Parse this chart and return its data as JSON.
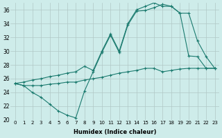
{
  "xlabel": "Humidex (Indice chaleur)",
  "ylabel": "",
  "background_color": "#ceecea",
  "grid_color": "#b0c8c6",
  "line_color": "#1a7a6e",
  "xlim": [
    -0.5,
    23.5
  ],
  "ylim": [
    20,
    37
  ],
  "xticks": [
    0,
    1,
    2,
    3,
    4,
    5,
    6,
    7,
    8,
    9,
    10,
    11,
    12,
    13,
    14,
    15,
    16,
    17,
    18,
    19,
    20,
    21,
    22,
    23
  ],
  "yticks": [
    20,
    22,
    24,
    26,
    28,
    30,
    32,
    34,
    36
  ],
  "line1_x": [
    0,
    1,
    2,
    3,
    4,
    5,
    6,
    7,
    8,
    9,
    10,
    11,
    12,
    13,
    14,
    15,
    16,
    17,
    18,
    19,
    20,
    21,
    22,
    23
  ],
  "line1_y": [
    25.3,
    25.0,
    25.0,
    25.0,
    25.2,
    25.3,
    25.5,
    25.5,
    25.8,
    26.0,
    26.2,
    26.5,
    26.8,
    27.0,
    27.2,
    27.5,
    27.5,
    27.0,
    27.2,
    27.4,
    27.5,
    27.5,
    27.5,
    27.5
  ],
  "line2_x": [
    0,
    1,
    2,
    3,
    4,
    5,
    6,
    7,
    8,
    9,
    10,
    11,
    12,
    13,
    14,
    15,
    16,
    17,
    18,
    19,
    20,
    21,
    22,
    23
  ],
  "line2_y": [
    25.3,
    25.0,
    24.0,
    23.3,
    22.3,
    21.3,
    20.7,
    20.3,
    24.2,
    27.0,
    29.8,
    32.3,
    29.8,
    33.8,
    35.8,
    35.9,
    36.3,
    36.8,
    36.5,
    35.5,
    29.3,
    29.2,
    27.5,
    27.5
  ],
  "line3_x": [
    0,
    1,
    2,
    3,
    4,
    5,
    6,
    7,
    8,
    9,
    10,
    11,
    12,
    13,
    14,
    15,
    16,
    17,
    18,
    19,
    20,
    21,
    22,
    23
  ],
  "line3_y": [
    25.3,
    25.5,
    25.8,
    26.0,
    26.3,
    26.5,
    26.8,
    27.0,
    27.8,
    27.2,
    30.0,
    32.5,
    30.0,
    34.0,
    36.0,
    36.5,
    37.0,
    36.5,
    36.5,
    35.5,
    35.5,
    31.5,
    29.2,
    27.5
  ]
}
